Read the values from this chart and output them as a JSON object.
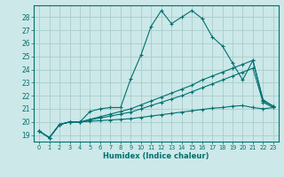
{
  "xlabel": "Humidex (Indice chaleur)",
  "ylabel": "",
  "bg_color": "#cce8e8",
  "grid_color": "#aacccc",
  "line_color": "#007070",
  "xlim": [
    -0.5,
    23.5
  ],
  "ylim": [
    18.5,
    28.9
  ],
  "xticks": [
    0,
    1,
    2,
    3,
    4,
    5,
    6,
    7,
    8,
    9,
    10,
    11,
    12,
    13,
    14,
    15,
    16,
    17,
    18,
    19,
    20,
    21,
    22,
    23
  ],
  "yticks": [
    19,
    20,
    21,
    22,
    23,
    24,
    25,
    26,
    27,
    28
  ],
  "line1_x": [
    0,
    1,
    2,
    3,
    4,
    5,
    6,
    7,
    8,
    9,
    10,
    11,
    12,
    13,
    14,
    15,
    16,
    17,
    18,
    19,
    20,
    21,
    22,
    23
  ],
  "line1_y": [
    19.3,
    18.8,
    19.8,
    20.0,
    20.0,
    20.8,
    21.0,
    21.1,
    21.1,
    23.3,
    25.1,
    27.3,
    28.5,
    27.5,
    28.0,
    28.5,
    27.9,
    26.5,
    25.8,
    24.5,
    23.2,
    24.7,
    21.7,
    21.2
  ],
  "line2_x": [
    0,
    1,
    2,
    3,
    4,
    5,
    6,
    7,
    8,
    9,
    10,
    11,
    12,
    13,
    14,
    15,
    16,
    17,
    18,
    19,
    20,
    21,
    22,
    23
  ],
  "line2_y": [
    19.3,
    18.8,
    19.8,
    20.0,
    20.0,
    20.2,
    20.4,
    20.6,
    20.8,
    21.0,
    21.3,
    21.6,
    21.9,
    22.2,
    22.5,
    22.8,
    23.2,
    23.5,
    23.8,
    24.1,
    24.4,
    24.7,
    21.6,
    21.2
  ],
  "line3_x": [
    0,
    1,
    2,
    3,
    4,
    5,
    6,
    7,
    8,
    9,
    10,
    11,
    12,
    13,
    14,
    15,
    16,
    17,
    18,
    19,
    20,
    21,
    22,
    23
  ],
  "line3_y": [
    19.3,
    18.8,
    19.8,
    20.0,
    20.0,
    20.15,
    20.3,
    20.45,
    20.6,
    20.75,
    21.0,
    21.25,
    21.5,
    21.75,
    22.0,
    22.3,
    22.6,
    22.9,
    23.2,
    23.5,
    23.8,
    24.1,
    21.5,
    21.1
  ],
  "line4_x": [
    0,
    1,
    2,
    3,
    4,
    5,
    6,
    7,
    8,
    9,
    10,
    11,
    12,
    13,
    14,
    15,
    16,
    17,
    18,
    19,
    20,
    21,
    22,
    23
  ],
  "line4_y": [
    19.3,
    18.8,
    19.8,
    20.0,
    20.0,
    20.05,
    20.1,
    20.15,
    20.2,
    20.25,
    20.35,
    20.45,
    20.55,
    20.65,
    20.75,
    20.85,
    20.95,
    21.05,
    21.1,
    21.2,
    21.25,
    21.1,
    21.0,
    21.1
  ]
}
